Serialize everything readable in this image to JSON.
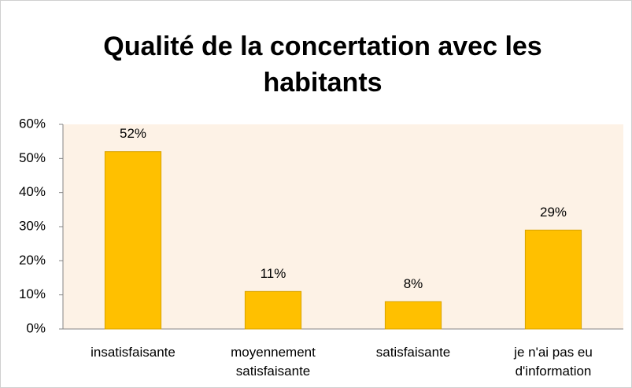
{
  "chart_data": {
    "type": "bar",
    "title": "Qualité de la concertation avec les habitants",
    "categories": [
      "insatisfaisante",
      "moyennement satisfaisante",
      "satisfaisante",
      "je n'ai pas eu d'information"
    ],
    "values": [
      52,
      11,
      8,
      29
    ],
    "value_labels": [
      "52%",
      "11%",
      "8%",
      "29%"
    ],
    "color": "#ffc000",
    "ylim": [
      0,
      60
    ],
    "yticks": [
      {
        "value": 0,
        "label": "0%"
      },
      {
        "value": 10,
        "label": "10%"
      },
      {
        "value": 20,
        "label": "20%"
      },
      {
        "value": 30,
        "label": "30%"
      },
      {
        "value": 40,
        "label": "40%"
      },
      {
        "value": 50,
        "label": "50%"
      },
      {
        "value": 60,
        "label": "60%"
      }
    ],
    "grid": false
  }
}
